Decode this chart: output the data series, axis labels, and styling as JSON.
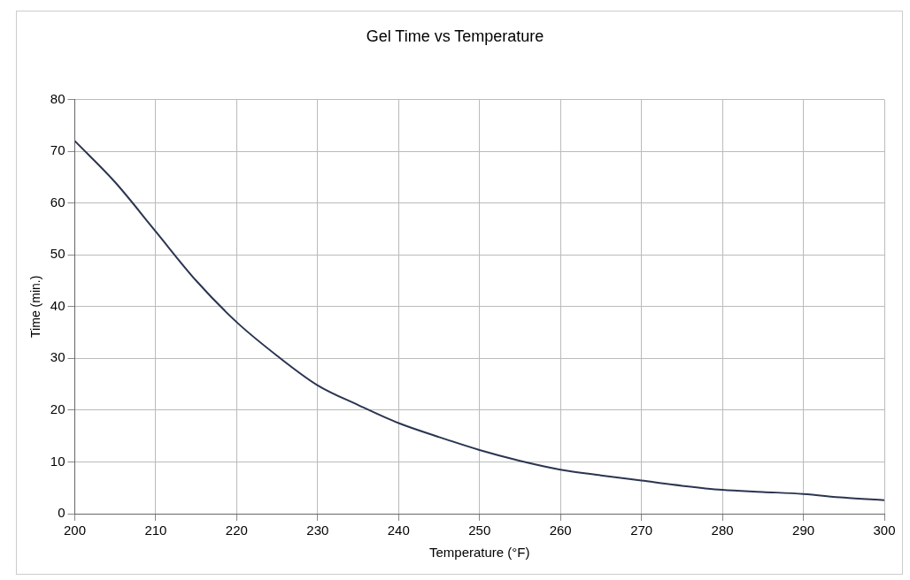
{
  "chart_data": {
    "type": "line",
    "title": "Gel Time vs Temperature",
    "xlabel": "Temperature (°F)",
    "ylabel": "Time (min.)",
    "x": [
      200,
      205,
      210,
      215,
      220,
      225,
      230,
      235,
      240,
      245,
      250,
      255,
      260,
      265,
      270,
      275,
      280,
      285,
      290,
      295,
      300
    ],
    "series": [
      {
        "color": "#2b3550",
        "values": [
          72,
          64,
          54.5,
          45,
          37,
          30.5,
          24.8,
          21,
          17.5,
          14.8,
          12.3,
          10.2,
          8.5,
          7.4,
          6.4,
          5.4,
          4.6,
          4.2,
          3.8,
          3.1,
          2.6
        ]
      }
    ],
    "xlim": [
      200,
      300
    ],
    "xticks": [
      200,
      210,
      220,
      230,
      240,
      250,
      260,
      270,
      280,
      290,
      300
    ],
    "ylim": [
      0,
      80
    ],
    "yticks": [
      0,
      10,
      20,
      30,
      40,
      50,
      60,
      70,
      80
    ],
    "grid": true,
    "marker": "none",
    "line_style": "solid"
  }
}
